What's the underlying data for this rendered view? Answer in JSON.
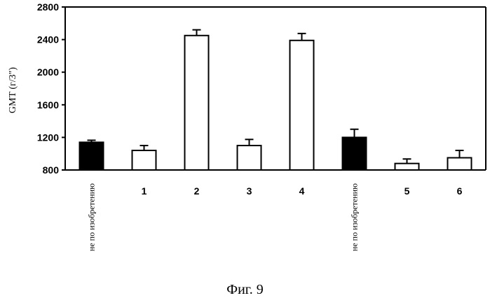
{
  "caption": "Фиг. 9",
  "colors": {
    "highlight_bar": "#000000",
    "normal_bar": "#ffffff",
    "stroke": "#000000"
  },
  "chart_data": {
    "type": "bar",
    "ylabel": "GMT (г/3\")",
    "ylim": [
      800,
      2800
    ],
    "yticks": [
      800,
      1200,
      1600,
      2000,
      2400,
      2800
    ],
    "ytick_labels": [
      "800",
      "1200",
      "1600",
      "2000",
      "2400",
      "2800"
    ],
    "grid": false,
    "categories": [
      "не по изобретению",
      "1",
      "2",
      "3",
      "4",
      "не по изобретению",
      "5",
      "6"
    ],
    "values": [
      1140,
      1040,
      2450,
      1100,
      2390,
      1200,
      880,
      950
    ],
    "error_upper": [
      1165,
      1100,
      2520,
      1175,
      2475,
      1300,
      935,
      1040
    ],
    "bar_colors": [
      "#000000",
      "#ffffff",
      "#ffffff",
      "#ffffff",
      "#ffffff",
      "#000000",
      "#ffffff",
      "#ffffff"
    ]
  }
}
